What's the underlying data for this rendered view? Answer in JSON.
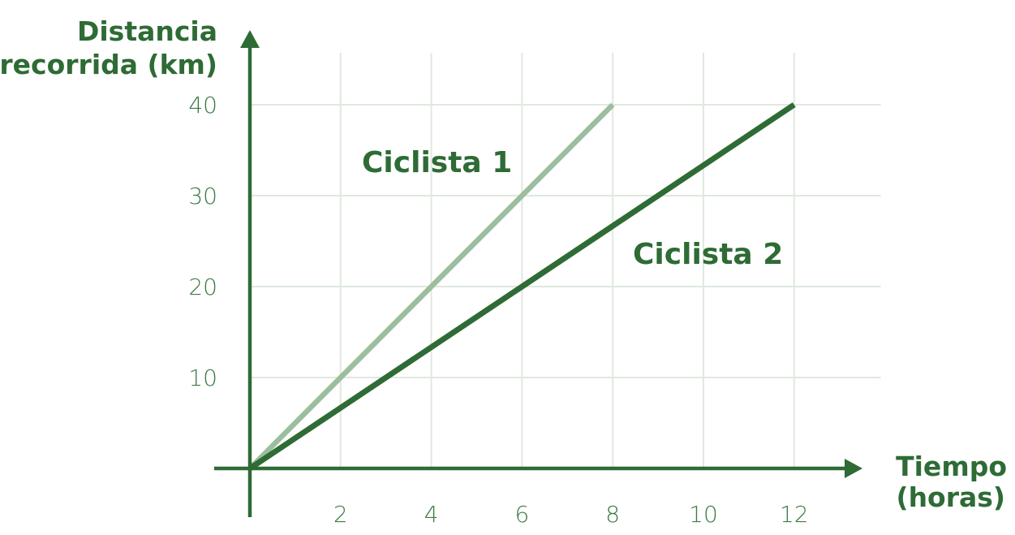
{
  "chart_data": {
    "type": "line",
    "title": "",
    "xlabel_lines": [
      "Tiempo",
      "(horas)"
    ],
    "ylabel_lines": [
      "Distancia",
      "recorrida (km)"
    ],
    "x_ticks": [
      2,
      4,
      6,
      8,
      10,
      12
    ],
    "y_ticks": [
      10,
      20,
      30,
      40
    ],
    "xlim": [
      0,
      14
    ],
    "ylim": [
      0,
      45
    ],
    "grid": true,
    "series": [
      {
        "name": "Ciclista 1",
        "color": "#9dbd9f",
        "x": [
          0,
          8
        ],
        "y": [
          0,
          40
        ]
      },
      {
        "name": "Ciclista 2",
        "color": "#2e6b35",
        "x": [
          0,
          12
        ],
        "y": [
          0,
          40
        ]
      }
    ]
  }
}
